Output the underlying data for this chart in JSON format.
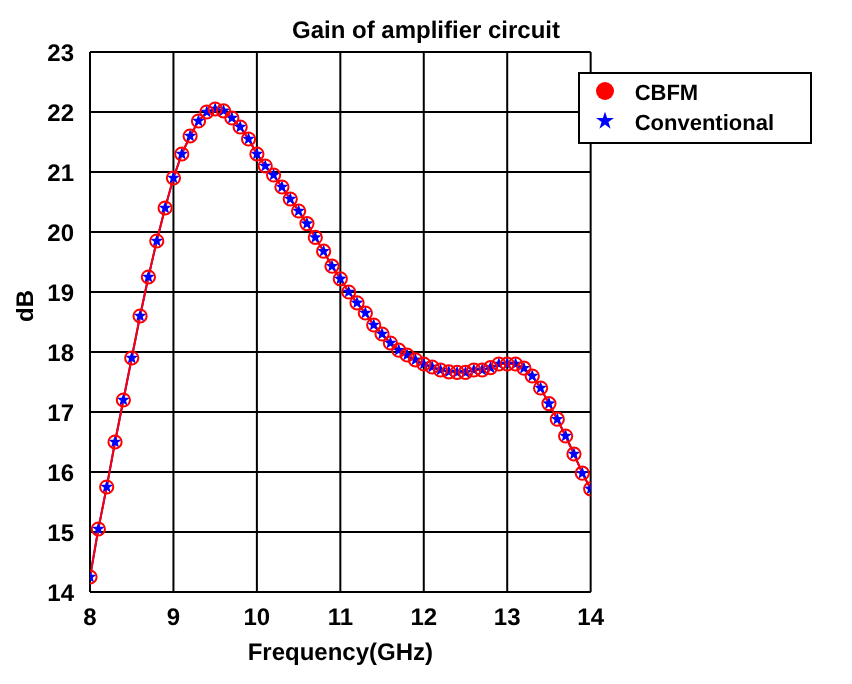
{
  "chart_data": {
    "type": "line",
    "title": "Gain of amplifier circuit",
    "xlabel": "Frequency(GHz)",
    "ylabel": "dB",
    "x": [
      8.0,
      8.1,
      8.2,
      8.3,
      8.4,
      8.5,
      8.6,
      8.7,
      8.8,
      8.9,
      9.0,
      9.1,
      9.2,
      9.3,
      9.4,
      9.5,
      9.6,
      9.7,
      9.8,
      9.9,
      10.0,
      10.1,
      10.2,
      10.3,
      10.4,
      10.5,
      10.6,
      10.7,
      10.8,
      10.9,
      11.0,
      11.1,
      11.2,
      11.3,
      11.4,
      11.5,
      11.6,
      11.7,
      11.8,
      11.9,
      12.0,
      12.1,
      12.2,
      12.3,
      12.4,
      12.5,
      12.6,
      12.7,
      12.8,
      12.9,
      13.0,
      13.1,
      13.2,
      13.3,
      13.4,
      13.5,
      13.6,
      13.7,
      13.8,
      13.9,
      14.0
    ],
    "series": [
      {
        "name": "Conventional",
        "color": "#0000ff",
        "marker": "star",
        "values": [
          14.25,
          15.05,
          15.75,
          16.5,
          17.2,
          17.9,
          18.6,
          19.25,
          19.85,
          20.4,
          20.9,
          21.3,
          21.6,
          21.85,
          22.0,
          22.05,
          22.02,
          21.9,
          21.75,
          21.55,
          21.3,
          21.1,
          20.95,
          20.75,
          20.55,
          20.35,
          20.14,
          19.91,
          19.68,
          19.43,
          19.22,
          19.0,
          18.82,
          18.65,
          18.45,
          18.3,
          18.15,
          18.03,
          17.95,
          17.87,
          17.8,
          17.75,
          17.7,
          17.67,
          17.66,
          17.66,
          17.7,
          17.7,
          17.74,
          17.8,
          17.8,
          17.8,
          17.73,
          17.6,
          17.4,
          17.14,
          16.88,
          16.6,
          16.3,
          15.98,
          15.72
        ]
      },
      {
        "name": "CBFM",
        "color": "#ff0000",
        "marker": "circle",
        "values": [
          14.25,
          15.05,
          15.75,
          16.5,
          17.2,
          17.9,
          18.6,
          19.25,
          19.85,
          20.4,
          20.9,
          21.3,
          21.6,
          21.85,
          22.0,
          22.05,
          22.02,
          21.9,
          21.75,
          21.55,
          21.3,
          21.1,
          20.95,
          20.75,
          20.55,
          20.35,
          20.14,
          19.91,
          19.68,
          19.43,
          19.22,
          19.0,
          18.82,
          18.65,
          18.45,
          18.3,
          18.15,
          18.03,
          17.95,
          17.87,
          17.8,
          17.75,
          17.7,
          17.67,
          17.66,
          17.66,
          17.7,
          17.7,
          17.74,
          17.8,
          17.8,
          17.8,
          17.73,
          17.6,
          17.4,
          17.14,
          16.88,
          16.6,
          16.3,
          15.98,
          15.72
        ]
      }
    ],
    "xlim": [
      8,
      14
    ],
    "xticks": [
      8,
      9,
      10,
      11,
      12,
      13,
      14
    ],
    "ylim": [
      14,
      23
    ],
    "yticks": [
      14,
      15,
      16,
      17,
      18,
      19,
      20,
      21,
      22,
      23
    ],
    "grid": true,
    "legend": "top right",
    "line_style": "solid"
  }
}
